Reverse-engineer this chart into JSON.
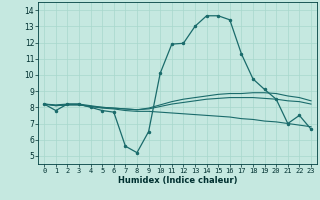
{
  "title": "",
  "xlabel": "Humidex (Indice chaleur)",
  "ylabel": "",
  "background_color": "#c5e8e0",
  "line_color": "#1a6b6b",
  "xlim": [
    -0.5,
    23.5
  ],
  "ylim": [
    4.5,
    14.5
  ],
  "xticks": [
    0,
    1,
    2,
    3,
    4,
    5,
    6,
    7,
    8,
    9,
    10,
    11,
    12,
    13,
    14,
    15,
    16,
    17,
    18,
    19,
    20,
    21,
    22,
    23
  ],
  "yticks": [
    5,
    6,
    7,
    8,
    9,
    10,
    11,
    12,
    13,
    14
  ],
  "grid_color": "#a8d8cc",
  "lines": [
    {
      "x": [
        0,
        1,
        2,
        3,
        4,
        5,
        6,
        7,
        8,
        9,
        10,
        11,
        12,
        13,
        14,
        15,
        16,
        17,
        18,
        19,
        20,
        21,
        22,
        23
      ],
      "y": [
        8.2,
        7.8,
        8.2,
        8.2,
        8.0,
        7.8,
        7.7,
        5.6,
        5.2,
        6.5,
        10.1,
        11.9,
        11.95,
        13.0,
        13.65,
        13.65,
        13.4,
        11.3,
        9.75,
        9.1,
        8.5,
        7.0,
        7.5,
        6.65
      ],
      "has_markers": true
    },
    {
      "x": [
        0,
        1,
        2,
        3,
        4,
        5,
        6,
        7,
        8,
        9,
        10,
        11,
        12,
        13,
        14,
        15,
        16,
        17,
        18,
        19,
        20,
        21,
        22,
        23
      ],
      "y": [
        8.2,
        8.1,
        8.15,
        8.15,
        8.05,
        8.0,
        7.95,
        7.9,
        7.85,
        7.9,
        8.05,
        8.2,
        8.3,
        8.4,
        8.5,
        8.55,
        8.6,
        8.6,
        8.6,
        8.55,
        8.5,
        8.4,
        8.35,
        8.2
      ],
      "has_markers": false
    },
    {
      "x": [
        0,
        1,
        2,
        3,
        4,
        5,
        6,
        7,
        8,
        9,
        10,
        11,
        12,
        13,
        14,
        15,
        16,
        17,
        18,
        19,
        20,
        21,
        22,
        23
      ],
      "y": [
        8.2,
        8.15,
        8.2,
        8.2,
        8.1,
        8.0,
        7.95,
        7.9,
        7.85,
        7.95,
        8.15,
        8.35,
        8.5,
        8.6,
        8.7,
        8.8,
        8.85,
        8.85,
        8.9,
        8.9,
        8.85,
        8.7,
        8.6,
        8.4
      ],
      "has_markers": false
    },
    {
      "x": [
        0,
        1,
        2,
        3,
        4,
        5,
        6,
        7,
        8,
        9,
        10,
        11,
        12,
        13,
        14,
        15,
        16,
        17,
        18,
        19,
        20,
        21,
        22,
        23
      ],
      "y": [
        8.2,
        8.1,
        8.15,
        8.15,
        8.05,
        7.95,
        7.9,
        7.8,
        7.75,
        7.75,
        7.7,
        7.65,
        7.6,
        7.55,
        7.5,
        7.45,
        7.4,
        7.3,
        7.25,
        7.15,
        7.1,
        7.0,
        6.9,
        6.8
      ],
      "has_markers": false
    }
  ]
}
